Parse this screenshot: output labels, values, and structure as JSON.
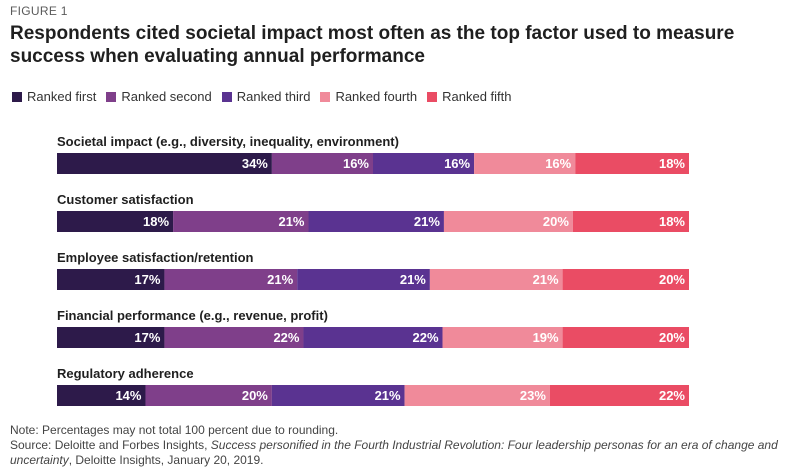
{
  "figure_label": "FIGURE 1",
  "title": "Respondents cited societal impact most often as the top factor used to measure success when evaluating annual performance",
  "chart_data": {
    "type": "bar",
    "orientation": "horizontal",
    "stacked": true,
    "value_format": "percent",
    "grid": false,
    "legend_position": "top-left",
    "categories": [
      "Societal impact (e.g., diversity, inequality, environment)",
      "Customer satisfaction",
      "Employee satisfaction/retention",
      "Financial performance (e.g., revenue, profit)",
      "Regulatory adherence"
    ],
    "series": [
      {
        "name": "Ranked first",
        "color": "#2d1a4a",
        "values": [
          34,
          18,
          17,
          17,
          14
        ]
      },
      {
        "name": "Ranked second",
        "color": "#7f3f8a",
        "values": [
          16,
          21,
          21,
          22,
          20
        ]
      },
      {
        "name": "Ranked third",
        "color": "#5a3391",
        "values": [
          16,
          21,
          21,
          22,
          21
        ]
      },
      {
        "name": "Ranked fourth",
        "color": "#f08a9a",
        "values": [
          16,
          20,
          21,
          19,
          23
        ]
      },
      {
        "name": "Ranked fifth",
        "color": "#ea4c64",
        "values": [
          18,
          18,
          20,
          20,
          22
        ]
      }
    ]
  },
  "footer": {
    "note": "Note: Percentages may not total 100 percent due to rounding.",
    "source_prefix": "Source: Deloitte and Forbes Insights, ",
    "source_italic": "Success personified in the Fourth Industrial Revolution: Four leadership personas for an era of change and uncertainty",
    "source_suffix": ", Deloitte Insights, January 20, 2019."
  }
}
